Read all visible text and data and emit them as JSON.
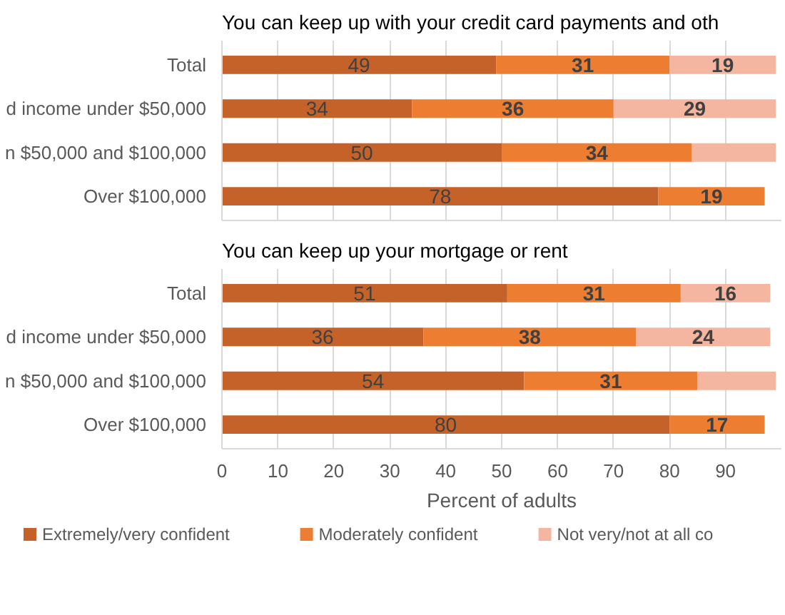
{
  "chart_data": [
    {
      "type": "bar",
      "orientation": "horizontal",
      "stacked": true,
      "title": "You can keep up with your credit card payments and oth",
      "categories": [
        "Total",
        "d income under $50,000",
        "n $50,000 and $100,000",
        "Over $100,000"
      ],
      "xlim": [
        0,
        100
      ],
      "xticks": [
        0,
        10,
        20,
        30,
        40,
        50,
        60,
        70,
        80,
        90
      ],
      "tick_labels": "y",
      "grid": "x",
      "series": [
        {
          "color": "#c4622a",
          "values": [
            49,
            34,
            50,
            78
          ],
          "value_labels": [
            "49",
            "34",
            "50",
            "78"
          ]
        },
        {
          "color": "#ed7d31",
          "values": [
            31,
            36,
            34,
            19
          ],
          "value_labels": [
            "31",
            "36",
            "34",
            "19"
          ]
        },
        {
          "color": "#f4b6a0",
          "values": [
            19,
            29,
            15,
            null
          ],
          "value_labels": [
            "19",
            "29",
            null,
            null
          ]
        }
      ]
    },
    {
      "type": "bar",
      "orientation": "horizontal",
      "stacked": true,
      "title": "You can keep up your mortgage or rent",
      "xlabel": "Percent of adults",
      "categories": [
        "Total",
        "d income under $50,000",
        "n $50,000 and $100,000",
        "Over $100,000"
      ],
      "xlim": [
        0,
        100
      ],
      "xticks": [
        0,
        10,
        20,
        30,
        40,
        50,
        60,
        70,
        80,
        90
      ],
      "grid": "x",
      "legend": "bottom",
      "series": [
        {
          "name": "Extremely/very confident",
          "color": "#c4622a",
          "values": [
            51,
            36,
            54,
            80
          ],
          "value_labels": [
            "51",
            "36",
            "54",
            "80"
          ]
        },
        {
          "name": "Moderately confident",
          "color": "#ed7d31",
          "values": [
            31,
            38,
            31,
            17
          ],
          "value_labels": [
            "31",
            "38",
            "31",
            "17"
          ]
        },
        {
          "name": "Not very/not at all co",
          "color": "#f4b6a0",
          "values": [
            16,
            24,
            14,
            null
          ],
          "value_labels": [
            "16",
            "24",
            null,
            null
          ]
        }
      ]
    }
  ]
}
